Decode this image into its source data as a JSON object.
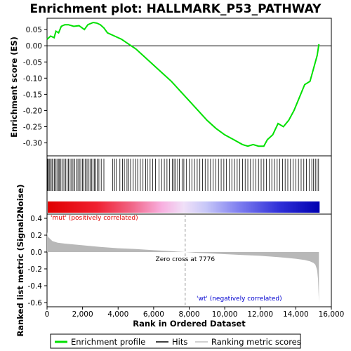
{
  "chart_data": {
    "type": "line",
    "title": "Enrichment plot: HALLMARK_P53_PATHWAY",
    "es_panel": {
      "ylabel": "Enrichment score (ES)",
      "ylim": [
        -0.34,
        0.085
      ],
      "yticks": [
        0.05,
        0.0,
        -0.05,
        -0.1,
        -0.15,
        -0.2,
        -0.25,
        -0.3
      ],
      "ytick_labels": [
        "0.05",
        "0.00",
        "-0.05",
        "-0.10",
        "-0.15",
        "-0.20",
        "-0.25",
        "-0.30"
      ],
      "series": [
        {
          "name": "Enrichment profile",
          "color": "#00e000",
          "x": [
            0,
            200,
            400,
            500,
            650,
            800,
            1000,
            1200,
            1500,
            1800,
            2100,
            2300,
            2600,
            2800,
            3000,
            3200,
            3400,
            3800,
            4200,
            4600,
            5000,
            5500,
            6000,
            6500,
            7000,
            7500,
            8000,
            8500,
            9000,
            9500,
            10000,
            10500,
            11000,
            11300,
            11600,
            11900,
            12200,
            12400,
            12700,
            13000,
            13300,
            13600,
            13900,
            14200,
            14500,
            14800,
            15000,
            15200,
            15300
          ],
          "y": [
            0.02,
            0.03,
            0.025,
            0.045,
            0.04,
            0.06,
            0.065,
            0.065,
            0.06,
            0.062,
            0.05,
            0.065,
            0.072,
            0.07,
            0.065,
            0.055,
            0.04,
            0.03,
            0.02,
            0.005,
            -0.01,
            -0.035,
            -0.06,
            -0.085,
            -0.11,
            -0.14,
            -0.17,
            -0.2,
            -0.23,
            -0.255,
            -0.275,
            -0.29,
            -0.305,
            -0.31,
            -0.305,
            -0.31,
            -0.31,
            -0.29,
            -0.275,
            -0.24,
            -0.25,
            -0.23,
            -0.2,
            -0.16,
            -0.12,
            -0.11,
            -0.07,
            -0.03,
            0.005
          ]
        }
      ]
    },
    "hits_panel": {
      "hits": [
        30,
        90,
        150,
        220,
        280,
        340,
        420,
        500,
        560,
        640,
        700,
        780,
        860,
        950,
        1040,
        1120,
        1200,
        1300,
        1380,
        1460,
        1560,
        1650,
        1740,
        1820,
        1900,
        2000,
        2080,
        2160,
        2250,
        2330,
        2420,
        2500,
        2580,
        2660,
        2740,
        2830,
        2920,
        3050,
        3200,
        3700,
        3800,
        3900,
        4100,
        4250,
        4350,
        4500,
        4600,
        4700,
        4850,
        5000,
        5100,
        5250,
        5400,
        5550,
        5650,
        5800,
        5950,
        6100,
        6300,
        6450,
        6600,
        6750,
        6900,
        7050,
        7150,
        7250,
        7350,
        7450,
        7600,
        7700,
        7850,
        8000,
        8150,
        8300,
        8450,
        8600,
        8750,
        8900,
        9050,
        9200,
        9350,
        9500,
        9650,
        9800,
        9950,
        10100,
        10250,
        10400,
        10550,
        10700,
        10850,
        11000,
        11150,
        11300,
        11450,
        11600,
        11750,
        11900,
        12050,
        12200,
        12350,
        12500,
        12650,
        12800,
        12950,
        13100,
        13250,
        13400,
        13550,
        13700,
        13850,
        14000,
        14150,
        14300,
        14450,
        14600,
        14750,
        14900,
        15000,
        15100,
        15200,
        15280
      ]
    },
    "metric_panel": {
      "ylabel": "Ranked list metric (Signal2Noise)",
      "xlabel": "Rank in Ordered Dataset",
      "xlim": [
        0,
        16000
      ],
      "xticks": [
        0,
        2000,
        4000,
        6000,
        8000,
        10000,
        12000,
        14000,
        16000
      ],
      "xtick_labels": [
        "0",
        "2,000",
        "4,000",
        "6,000",
        "8,000",
        "10,000",
        "12,000",
        "14,000",
        "16,000"
      ],
      "ylim": [
        -0.65,
        0.45
      ],
      "yticks": [
        0.4,
        0.2,
        0.0,
        -0.2,
        -0.4,
        -0.6
      ],
      "ytick_labels": [
        "0.4",
        "0.2",
        "0.0",
        "-0.2",
        "-0.4",
        "-0.6"
      ],
      "x": [
        0,
        50,
        150,
        300,
        600,
        1000,
        2000,
        3000,
        4000,
        5000,
        6000,
        7000,
        7776,
        8500,
        9000,
        10000,
        11000,
        12000,
        13000,
        13500,
        14000,
        14500,
        14800,
        15000,
        15100,
        15150,
        15200,
        15250,
        15300
      ],
      "y": [
        0.24,
        0.18,
        0.16,
        0.13,
        0.11,
        0.1,
        0.08,
        0.06,
        0.045,
        0.035,
        0.022,
        0.01,
        0.0,
        -0.01,
        -0.015,
        -0.025,
        -0.035,
        -0.045,
        -0.06,
        -0.07,
        -0.08,
        -0.095,
        -0.11,
        -0.13,
        -0.15,
        -0.18,
        -0.22,
        -0.32,
        -0.6
      ],
      "zero_cross_label": "Zero cross at 7776",
      "zero_cross": 7776,
      "pos_label": "'mut' (positively correlated)",
      "neg_label": "'wt' (negatively correlated)"
    },
    "legend": [
      {
        "label": "Enrichment profile",
        "color": "#00e000"
      },
      {
        "label": "Hits",
        "color": "#000000"
      },
      {
        "label": "Ranking metric scores",
        "color": "#c0c0c0"
      }
    ]
  }
}
